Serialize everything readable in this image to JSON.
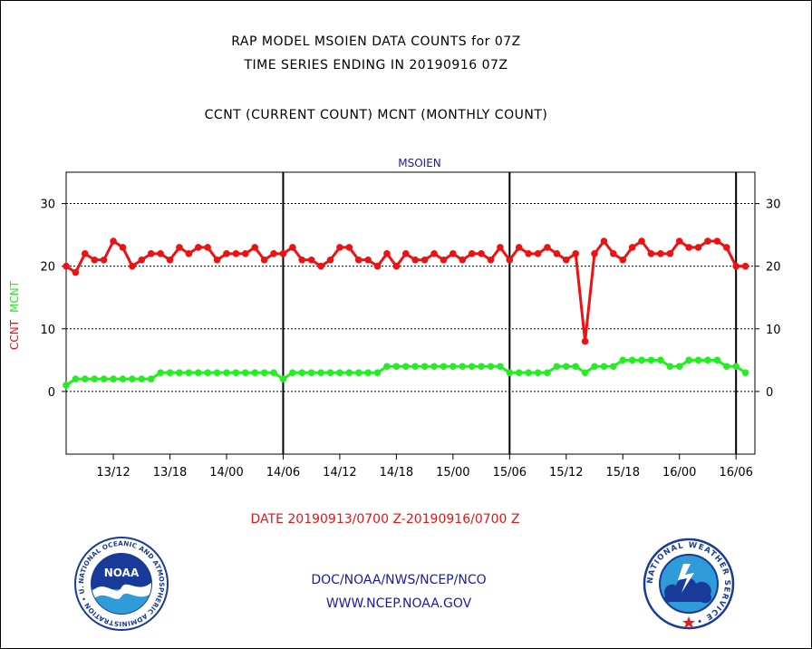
{
  "header": {
    "title_line1": "RAP MODEL MSOIEN DATA COUNTS for 07Z",
    "title_line2": "TIME SERIES ENDING IN 20190916 07Z",
    "subtitle": "CCNT (CURRENT COUNT) MCNT (MONTHLY COUNT)"
  },
  "colors": {
    "ccnt": "#ee1111",
    "mcnt": "#22ee22",
    "station": "#1a1aaa",
    "footer": "#1a1aaa"
  },
  "footer": {
    "date_range": "DATE 20190913/0700 Z-20190916/0700 Z",
    "credit_line1": "DOC/NOAA/NWS/NCEP/NCO",
    "credit_line2": "WWW.NCEP.NOAA.GOV"
  },
  "logos": {
    "noaa_icon": "noaa-logo",
    "nws_icon": "nws-logo",
    "noaa_ring_text": "NATIONAL OCEANIC AND ATMOSPHERIC ADMINISTRATION • U.S. DEPARTMENT OF COMMERCE •",
    "noaa_center": "NOAA",
    "nws_ring_text": "NATIONAL WEATHER SERVICE •"
  },
  "chart_data": {
    "type": "line",
    "station_label": "MSOIEN",
    "ylabel_parts": [
      "CCNT",
      "MCNT"
    ],
    "ylim": [
      -10,
      35
    ],
    "yticks": [
      0,
      10,
      20,
      30
    ],
    "y_grid_dotted": [
      0,
      10,
      20,
      30
    ],
    "x_start_hour": 7,
    "x_range_hours": [
      0,
      73
    ],
    "xticks": [
      {
        "label": "13/12",
        "hour": 5
      },
      {
        "label": "13/18",
        "hour": 11
      },
      {
        "label": "14/00",
        "hour": 17
      },
      {
        "label": "14/06",
        "hour": 23
      },
      {
        "label": "14/12",
        "hour": 29
      },
      {
        "label": "14/18",
        "hour": 35
      },
      {
        "label": "15/00",
        "hour": 41
      },
      {
        "label": "15/06",
        "hour": 47
      },
      {
        "label": "15/12",
        "hour": 53
      },
      {
        "label": "15/18",
        "hour": 59
      },
      {
        "label": "16/00",
        "hour": 65
      },
      {
        "label": "16/06",
        "hour": 71
      }
    ],
    "vertical_lines_hours": [
      23,
      47,
      71
    ],
    "series": [
      {
        "name": "CCNT",
        "values": [
          20,
          19,
          22,
          21,
          21,
          24,
          23,
          20,
          21,
          22,
          22,
          21,
          23,
          22,
          23,
          23,
          21,
          22,
          22,
          22,
          23,
          21,
          22,
          22,
          23,
          21,
          21,
          20,
          21,
          23,
          23,
          21,
          21,
          20,
          22,
          20,
          22,
          21,
          21,
          22,
          21,
          22,
          21,
          22,
          22,
          21,
          23,
          21,
          23,
          22,
          22,
          23,
          22,
          21,
          22,
          8,
          22,
          24,
          22,
          21,
          23,
          24,
          22,
          22,
          22,
          24,
          23,
          23,
          24,
          24,
          23,
          20,
          20
        ]
      },
      {
        "name": "MCNT",
        "values": [
          1,
          2,
          2,
          2,
          2,
          2,
          2,
          2,
          2,
          2,
          3,
          3,
          3,
          3,
          3,
          3,
          3,
          3,
          3,
          3,
          3,
          3,
          3,
          2,
          3,
          3,
          3,
          3,
          3,
          3,
          3,
          3,
          3,
          3,
          4,
          4,
          4,
          4,
          4,
          4,
          4,
          4,
          4,
          4,
          4,
          4,
          4,
          3,
          3,
          3,
          3,
          3,
          4,
          4,
          4,
          3,
          4,
          4,
          4,
          5,
          5,
          5,
          5,
          5,
          4,
          4,
          5,
          5,
          5,
          5,
          4,
          4,
          3
        ]
      }
    ]
  }
}
